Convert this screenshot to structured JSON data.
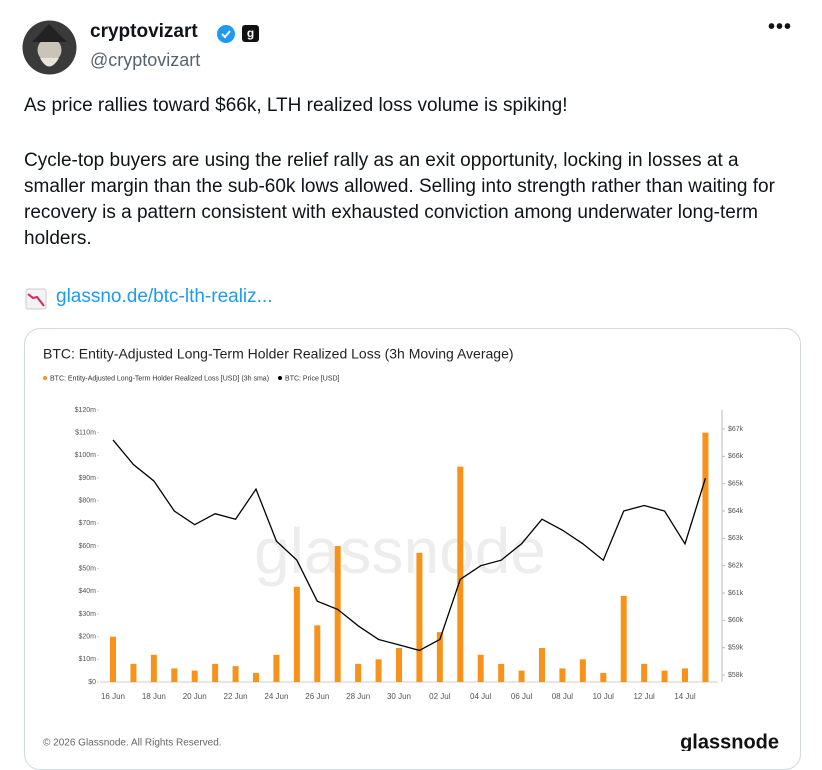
{
  "tweet": {
    "name": "cryptovizart",
    "badge": "g",
    "handle": "@cryptovizart",
    "menu": "•••",
    "paragraphs": [
      "As price rallies toward $66k, LTH realized loss volume is spiking!",
      "Cycle-top buyers are using the relief rally as an exit opportunity, locking in losses at a smaller margin than the sub-60k lows allowed. Selling into strength rather than waiting for recovery is a pattern consistent with exhausted conviction among underwater long-term holders."
    ],
    "link": "glassno.de/btc-lth-realiz..."
  },
  "card": {
    "watermark": "glassnode",
    "copyright": "© 2026 Glassnode. All Rights Reserved.",
    "logo": "glassnode"
  },
  "chart_data": {
    "type": "bar-line",
    "title": "BTC: Entity-Adjusted Long-Term Holder Realized Loss (3h Moving Average)",
    "categories": [
      "16 Jun",
      null,
      "18 Jun",
      null,
      "20 Jun",
      null,
      "22 Jun",
      null,
      "24 Jun",
      null,
      "26 Jun",
      null,
      "28 Jun",
      null,
      "30 Jun",
      null,
      "02 Jul",
      null,
      "04 Jul",
      null,
      "06 Jul",
      null,
      "08 Jul",
      null,
      "10 Jul",
      null,
      "12 Jul",
      null,
      "14 Jul",
      null
    ],
    "series": [
      {
        "name": "BTC: Entity-Adjusted Long-Term Holder Realized Loss [USD] (3h sma)",
        "color": "#f7931a",
        "values": [
          20,
          8,
          12,
          6,
          5,
          8,
          7,
          4,
          12,
          42,
          25,
          60,
          8,
          10,
          15,
          57,
          22,
          95,
          12,
          8,
          5,
          15,
          6,
          10,
          4,
          38,
          8,
          5,
          6,
          110
        ]
      },
      {
        "name": "BTC: Price [USD]",
        "color": "#000000",
        "axis": "y2",
        "values": [
          66.6,
          65.7,
          65.1,
          64.0,
          63.5,
          63.9,
          63.7,
          64.8,
          62.9,
          62.2,
          60.7,
          60.4,
          59.8,
          59.3,
          59.1,
          58.9,
          59.3,
          61.5,
          62.0,
          62.2,
          62.8,
          63.7,
          63.3,
          62.8,
          62.2,
          64.0,
          64.2,
          64.0,
          62.8,
          65.2
        ]
      }
    ],
    "ylim": [
      0,
      120
    ],
    "yticks": [
      {
        "value": 0,
        "label": "$0"
      },
      {
        "value": 10,
        "label": "$10m"
      },
      {
        "value": 20,
        "label": "$20m"
      },
      {
        "value": 30,
        "label": "$30m"
      },
      {
        "value": 40,
        "label": "$40m"
      },
      {
        "value": 50,
        "label": "$50m"
      },
      {
        "value": 60,
        "label": "$60m"
      },
      {
        "value": 70,
        "label": "$70m"
      },
      {
        "value": 80,
        "label": "$80m"
      },
      {
        "value": 90,
        "label": "$90m"
      },
      {
        "value": 100,
        "label": "$100m"
      },
      {
        "value": 110,
        "label": "$110m"
      },
      {
        "value": 120,
        "label": "$120m"
      }
    ],
    "y2lim": [
      58,
      67
    ],
    "y2ticks": [
      {
        "value": 58,
        "label": "$58k"
      },
      {
        "value": 59,
        "label": "$59k"
      },
      {
        "value": 60,
        "label": "$60k"
      },
      {
        "value": 61,
        "label": "$61k"
      },
      {
        "value": 62,
        "label": "$62k"
      },
      {
        "value": 63,
        "label": "$63k"
      },
      {
        "value": 64,
        "label": "$64k"
      },
      {
        "value": 65,
        "label": "$65k"
      },
      {
        "value": 66,
        "label": "$66k"
      },
      {
        "value": 67,
        "label": "$67k"
      }
    ]
  }
}
